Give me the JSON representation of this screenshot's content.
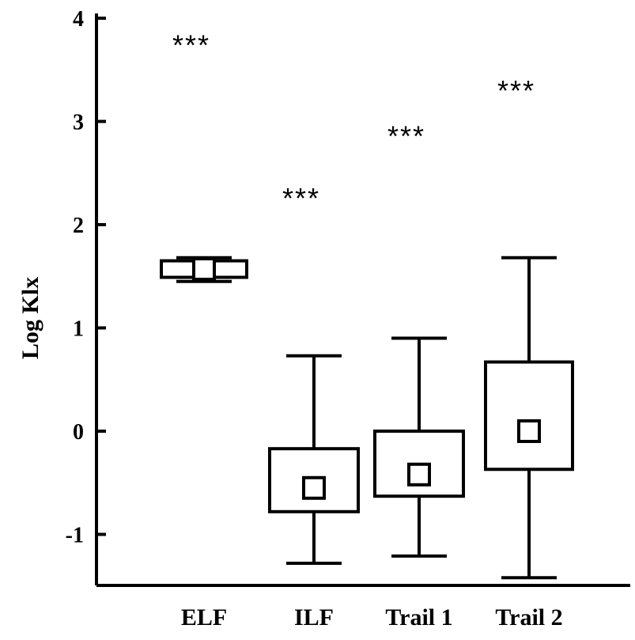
{
  "chart_data": {
    "type": "box",
    "title": "",
    "xlabel": "",
    "ylabel": "Log Klx",
    "ylim": [
      -1.5,
      4
    ],
    "yticks": [
      -1,
      0,
      1,
      2,
      3,
      4
    ],
    "ytick_labels": [
      "-1",
      "0",
      "1",
      "2",
      "3",
      "4"
    ],
    "categories": [
      "ELF",
      "ILF",
      "Trail 1",
      "Trail 2"
    ],
    "boxes": [
      {
        "category": "ELF",
        "whisker_low": 1.45,
        "q1": 1.49,
        "median": 1.57,
        "q3": 1.65,
        "whisker_high": 1.68,
        "annotation": "***",
        "annotation_y": 3.78
      },
      {
        "category": "ILF",
        "whisker_low": -1.28,
        "q1": -0.78,
        "median": -0.55,
        "q3": -0.17,
        "whisker_high": 0.73,
        "annotation": "***",
        "annotation_y": 2.3
      },
      {
        "category": "Trail 1",
        "whisker_low": -1.21,
        "q1": -0.63,
        "median": -0.42,
        "q3": 0.0,
        "whisker_high": 0.9,
        "annotation": "***",
        "annotation_y": 2.9
      },
      {
        "category": "Trail 2",
        "whisker_low": -1.42,
        "q1": -0.37,
        "median": 0.0,
        "q3": 0.67,
        "whisker_high": 1.68,
        "annotation": "***",
        "annotation_y": 3.34
      }
    ],
    "grid": false,
    "legend": "none"
  }
}
